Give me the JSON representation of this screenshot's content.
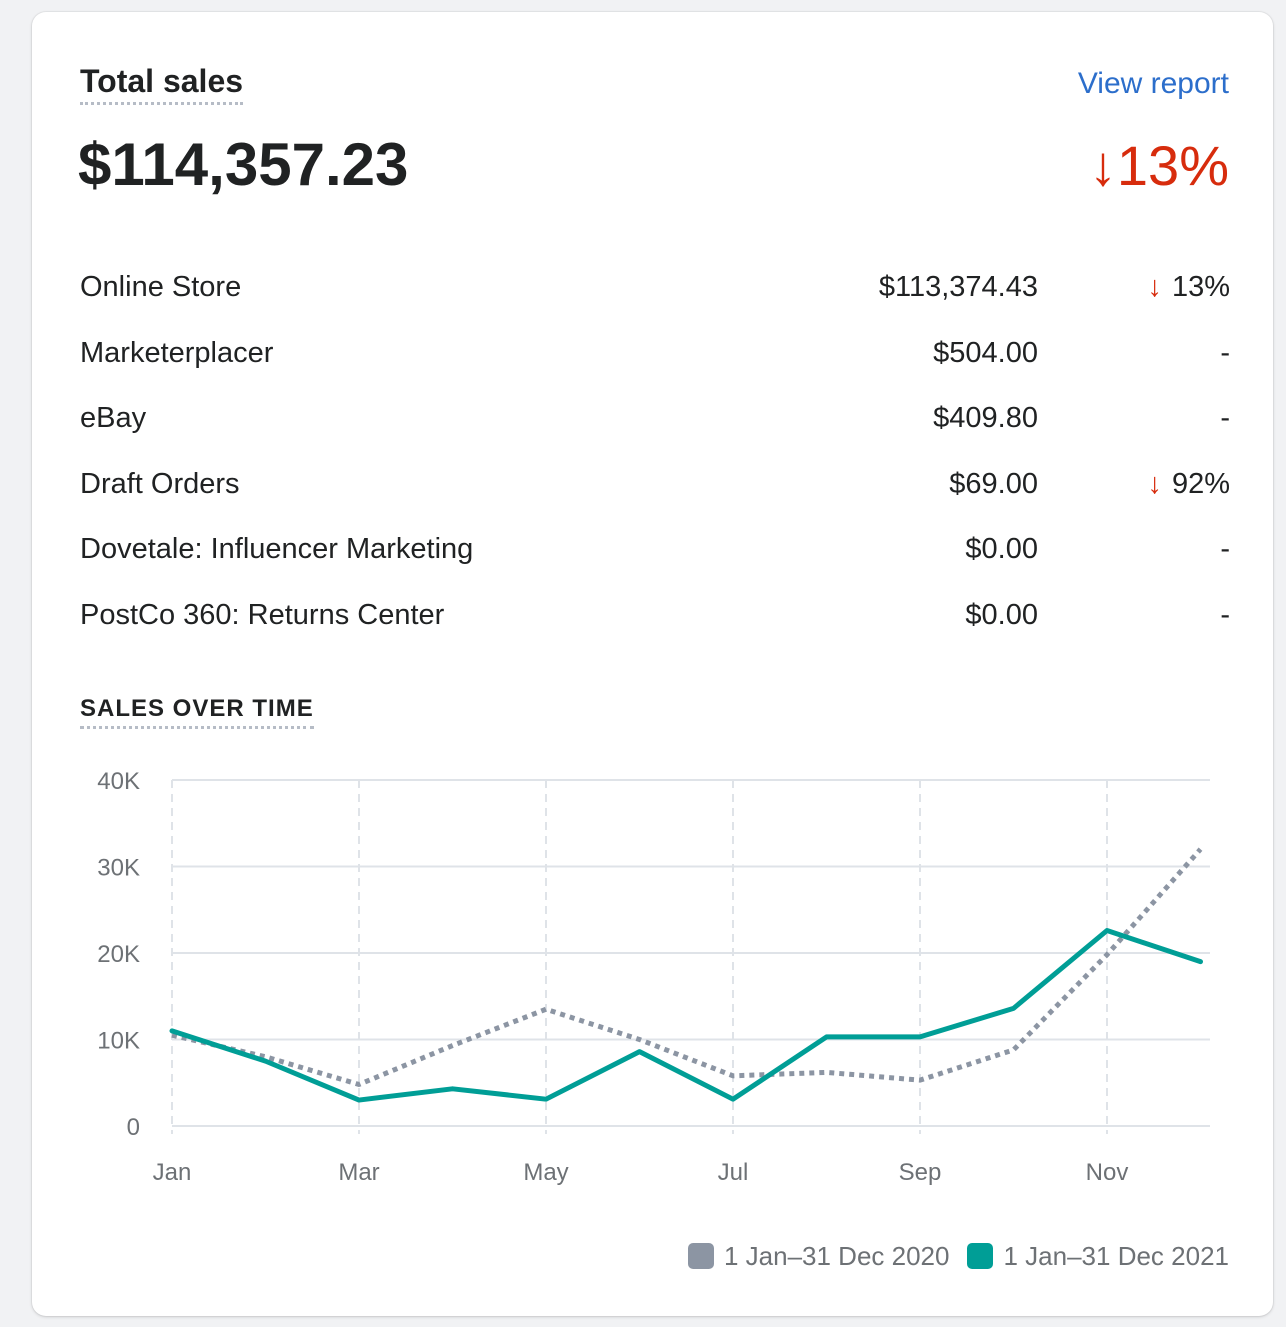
{
  "card": {
    "title": "Total sales",
    "view_report": "View report",
    "total": "$114,357.23",
    "total_change": "13%",
    "total_change_arrow": "↓"
  },
  "channels": [
    {
      "name": "Online Store",
      "amount": "$113,374.43",
      "change": "13%",
      "direction": "down"
    },
    {
      "name": "Marketerplacer",
      "amount": "$504.00",
      "change": "-",
      "direction": "none"
    },
    {
      "name": "eBay",
      "amount": "$409.80",
      "change": "-",
      "direction": "none"
    },
    {
      "name": "Draft Orders",
      "amount": "$69.00",
      "change": "92%",
      "direction": "down"
    },
    {
      "name": "Dovetale: Influencer Marketing",
      "amount": "$0.00",
      "change": "-",
      "direction": "none"
    },
    {
      "name": "PostCo 360: Returns Center",
      "amount": "$0.00",
      "change": "-",
      "direction": "none"
    }
  ],
  "chart_section_title": "SALES OVER TIME",
  "colors": {
    "accent_link": "#2c6ecb",
    "negative": "#d72c0d",
    "series_2020": "#8c95a3",
    "series_2021": "#009e96"
  },
  "chart_data": {
    "type": "line",
    "x": [
      "Jan",
      "Feb",
      "Mar",
      "Apr",
      "May",
      "Jun",
      "Jul",
      "Aug",
      "Sep",
      "Oct",
      "Nov",
      "Dec"
    ],
    "x_tick_labels": [
      "Jan",
      "Mar",
      "May",
      "Jul",
      "Sep",
      "Nov"
    ],
    "y_ticks": [
      0,
      10000,
      20000,
      30000,
      40000
    ],
    "y_tick_labels": [
      "0",
      "10K",
      "20K",
      "30K",
      "40K"
    ],
    "ylim": [
      0,
      40000
    ],
    "grid": true,
    "legend_position": "bottom-right",
    "series": [
      {
        "name": "1 Jan–31 Dec 2020",
        "style": "dotted",
        "color": "#8c95a3",
        "values": [
          10500,
          8000,
          4800,
          9300,
          13500,
          10000,
          5800,
          6200,
          5300,
          8800,
          19800,
          32000
        ]
      },
      {
        "name": "1 Jan–31 Dec 2021",
        "style": "solid",
        "color": "#009e96",
        "values": [
          11000,
          7500,
          3000,
          4300,
          3100,
          8600,
          3100,
          10300,
          10300,
          13600,
          22600,
          19000
        ]
      }
    ]
  }
}
